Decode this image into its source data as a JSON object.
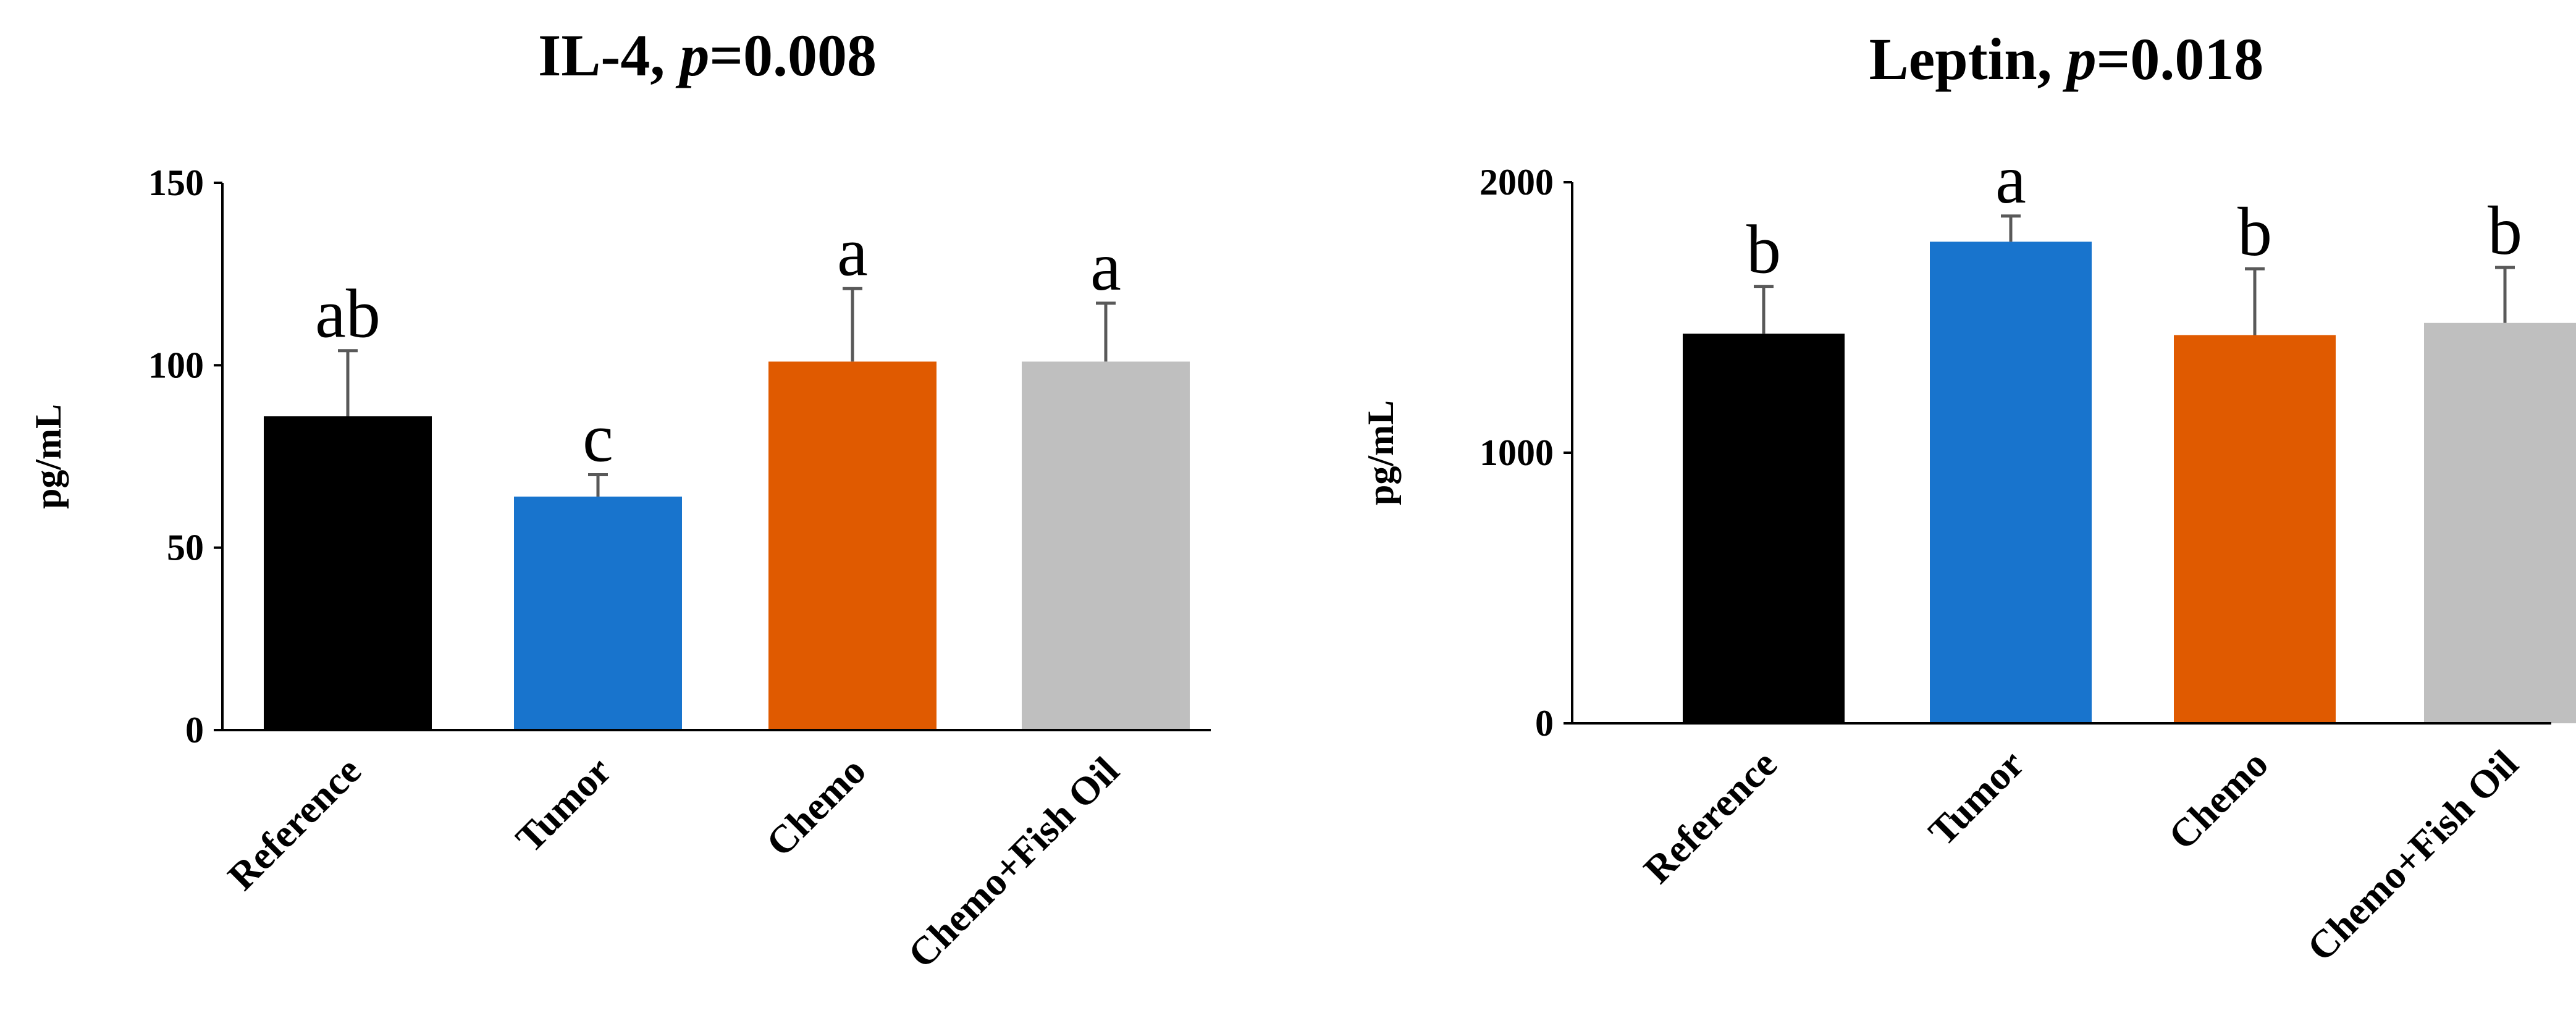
{
  "chart_data": [
    {
      "type": "bar",
      "title": "IL-4, ",
      "title_p": "p",
      "title_suffix": "=0.008",
      "ylabel": "pg/mL",
      "ylim": [
        0,
        150
      ],
      "yticks": [
        0,
        50,
        100,
        150
      ],
      "categories": [
        "Reference",
        "Tumor",
        "Chemo",
        "Chemo+Fish Oil"
      ],
      "values": [
        86,
        64,
        101,
        101
      ],
      "errors": [
        18,
        6,
        20,
        16
      ],
      "significance": [
        "ab",
        "c",
        "a",
        "a"
      ],
      "colors": [
        "#000000",
        "#1874CD",
        "#E05A00",
        "#BFBFBF"
      ]
    },
    {
      "type": "bar",
      "title": "Leptin, ",
      "title_p": "p",
      "title_suffix": "=0.018",
      "ylabel": "pg/mL",
      "ylim": [
        0,
        2000
      ],
      "yticks": [
        0,
        1000,
        2000
      ],
      "categories": [
        "Reference",
        "Tumor",
        "Chemo",
        "Chemo+Fish Oil"
      ],
      "values": [
        1440,
        1780,
        1435,
        1480
      ],
      "errors": [
        175,
        95,
        245,
        205
      ],
      "significance": [
        "b",
        "a",
        "b",
        "b"
      ],
      "colors": [
        "#000000",
        "#1874CD",
        "#E05A00",
        "#BFBFBF"
      ]
    }
  ]
}
